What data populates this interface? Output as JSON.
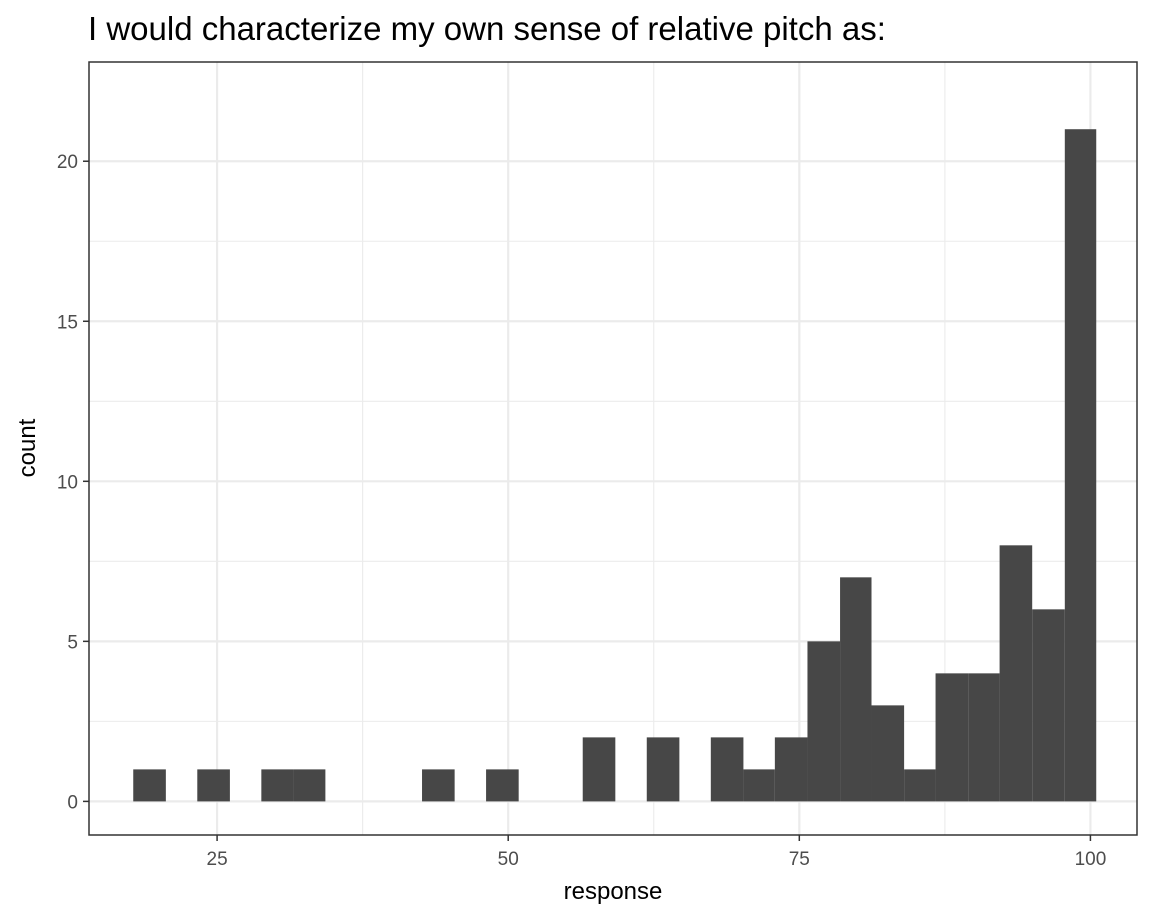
{
  "chart_data": {
    "type": "bar",
    "title": "I would characterize my own sense of relative pitch as:",
    "xlabel": "response",
    "ylabel": "count",
    "xlim": [
      14,
      104
    ],
    "ylim": [
      -1.05,
      23.1
    ],
    "x_ticks": [
      25,
      50,
      75,
      100
    ],
    "x_tick_labels": [
      "25",
      "50",
      "75",
      "100"
    ],
    "y_ticks": [
      0,
      5,
      10,
      15,
      20
    ],
    "y_tick_labels": [
      "0",
      "5",
      "10",
      "15",
      "20"
    ],
    "grid": true,
    "bins": [
      {
        "x0": 17.8,
        "x1": 20.6,
        "count": 1
      },
      {
        "x0": 23.3,
        "x1": 26.1,
        "count": 1
      },
      {
        "x0": 28.8,
        "x1": 31.6,
        "count": 1
      },
      {
        "x0": 31.6,
        "x1": 34.3,
        "count": 1
      },
      {
        "x0": 42.6,
        "x1": 45.4,
        "count": 1
      },
      {
        "x0": 48.1,
        "x1": 50.9,
        "count": 1
      },
      {
        "x0": 56.4,
        "x1": 59.2,
        "count": 2
      },
      {
        "x0": 61.9,
        "x1": 64.7,
        "count": 2
      },
      {
        "x0": 67.4,
        "x1": 70.2,
        "count": 2
      },
      {
        "x0": 70.2,
        "x1": 72.9,
        "count": 1
      },
      {
        "x0": 72.9,
        "x1": 75.7,
        "count": 2
      },
      {
        "x0": 75.7,
        "x1": 78.5,
        "count": 5
      },
      {
        "x0": 78.5,
        "x1": 81.2,
        "count": 7
      },
      {
        "x0": 81.2,
        "x1": 84.0,
        "count": 3
      },
      {
        "x0": 84.0,
        "x1": 86.7,
        "count": 1
      },
      {
        "x0": 86.7,
        "x1": 89.5,
        "count": 4
      },
      {
        "x0": 89.5,
        "x1": 92.2,
        "count": 4
      },
      {
        "x0": 92.2,
        "x1": 95.0,
        "count": 8
      },
      {
        "x0": 95.0,
        "x1": 97.8,
        "count": 6
      },
      {
        "x0": 97.8,
        "x1": 100.5,
        "count": 21
      }
    ],
    "colors": {
      "bar": "#474747",
      "panel_border": "#333333",
      "grid": "#ebebeb",
      "tick_label": "#4d4d4d",
      "text": "#000000"
    }
  }
}
